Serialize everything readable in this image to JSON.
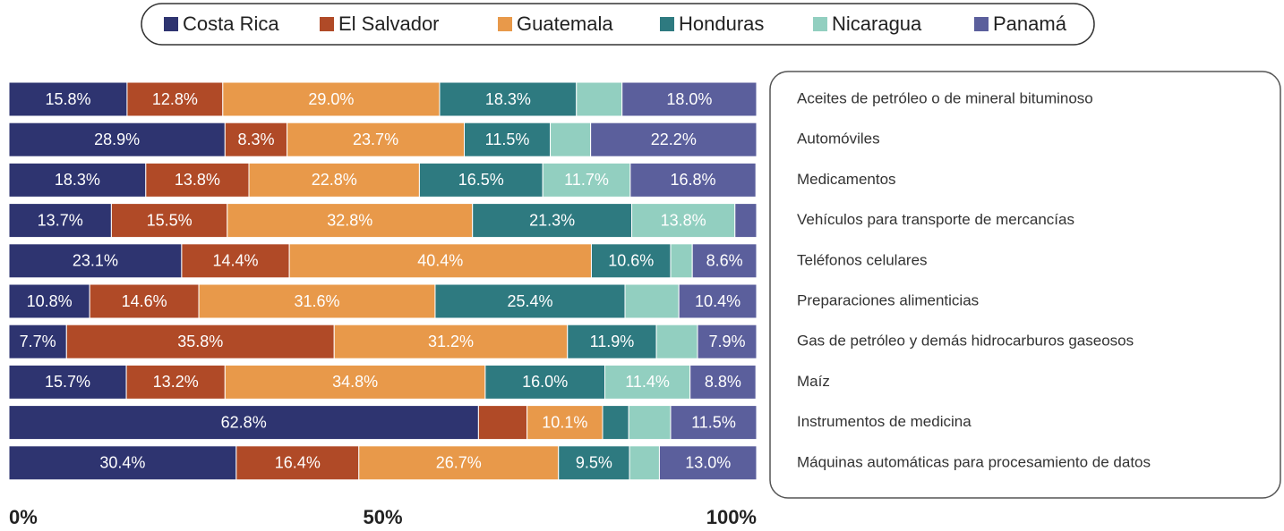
{
  "chart_data": {
    "type": "stacked_bar_horizontal",
    "categories": [
      "Aceites de petróleo o de mineral bituminoso",
      "Automóviles",
      "Medicamentos",
      "Vehículos para transporte de mercancías",
      "Teléfonos celulares",
      "Preparaciones alimenticias",
      "Gas de petróleo y demás hidrocarburos gaseosos",
      "Maíz",
      "Instrumentos de medicina",
      "Máquinas automáticas para procesamiento de datos"
    ],
    "series": [
      {
        "name": "Costa Rica",
        "color": "#2e3470",
        "values": [
          15.8,
          28.9,
          18.3,
          13.7,
          23.1,
          10.8,
          7.7,
          15.7,
          62.8,
          30.4
        ],
        "value_labels": [
          "15.8%",
          "28.9%",
          "18.3%",
          "13.7%",
          "23.1%",
          "10.8%",
          "7.7%",
          "15.7%",
          "62.8%",
          "30.4%"
        ]
      },
      {
        "name": "El Salvador",
        "color": "#b04a27",
        "values": [
          12.8,
          8.3,
          13.8,
          15.5,
          14.4,
          14.6,
          35.8,
          13.2,
          6.5,
          16.4
        ],
        "value_labels": [
          "12.8%",
          "8.3%",
          "13.8%",
          "15.5%",
          "14.4%",
          "14.6%",
          "35.8%",
          "13.2%",
          null,
          "16.4%"
        ]
      },
      {
        "name": "Guatemala",
        "color": "#e8994a",
        "values": [
          29.0,
          23.7,
          22.8,
          32.8,
          40.4,
          31.6,
          31.2,
          34.8,
          10.1,
          26.7
        ],
        "value_labels": [
          "29.0%",
          "23.7%",
          "22.8%",
          "32.8%",
          "40.4%",
          "31.6%",
          "31.2%",
          "34.8%",
          "10.1%",
          "26.7%"
        ]
      },
      {
        "name": "Honduras",
        "color": "#2e7a80",
        "values": [
          18.3,
          11.5,
          16.5,
          21.3,
          10.6,
          25.4,
          11.9,
          16.0,
          3.5,
          9.5
        ],
        "value_labels": [
          "18.3%",
          "11.5%",
          "16.5%",
          "21.3%",
          "10.6%",
          "25.4%",
          "11.9%",
          "16.0%",
          null,
          "9.5%"
        ]
      },
      {
        "name": "Nicaragua",
        "color": "#92cfc0",
        "values": [
          6.1,
          5.4,
          11.7,
          13.8,
          2.9,
          7.2,
          5.5,
          11.4,
          5.6,
          4.0
        ],
        "value_labels": [
          null,
          null,
          "11.7%",
          "13.8%",
          null,
          null,
          null,
          "11.4%",
          null,
          null
        ]
      },
      {
        "name": "Panamá",
        "color": "#5b5f9c",
        "values": [
          18.0,
          22.2,
          16.8,
          2.9,
          8.6,
          10.4,
          7.9,
          8.8,
          11.5,
          13.0
        ],
        "value_labels": [
          "18.0%",
          "22.2%",
          "16.8%",
          null,
          "8.6%",
          "10.4%",
          "7.9%",
          "8.8%",
          "11.5%",
          "13.0%"
        ]
      }
    ],
    "xlim": [
      0,
      100
    ],
    "xticks": [
      {
        "value": 0,
        "label": "0%"
      },
      {
        "value": 50,
        "label": "50%"
      },
      {
        "value": 100,
        "label": "100%"
      }
    ],
    "legend": "top"
  }
}
